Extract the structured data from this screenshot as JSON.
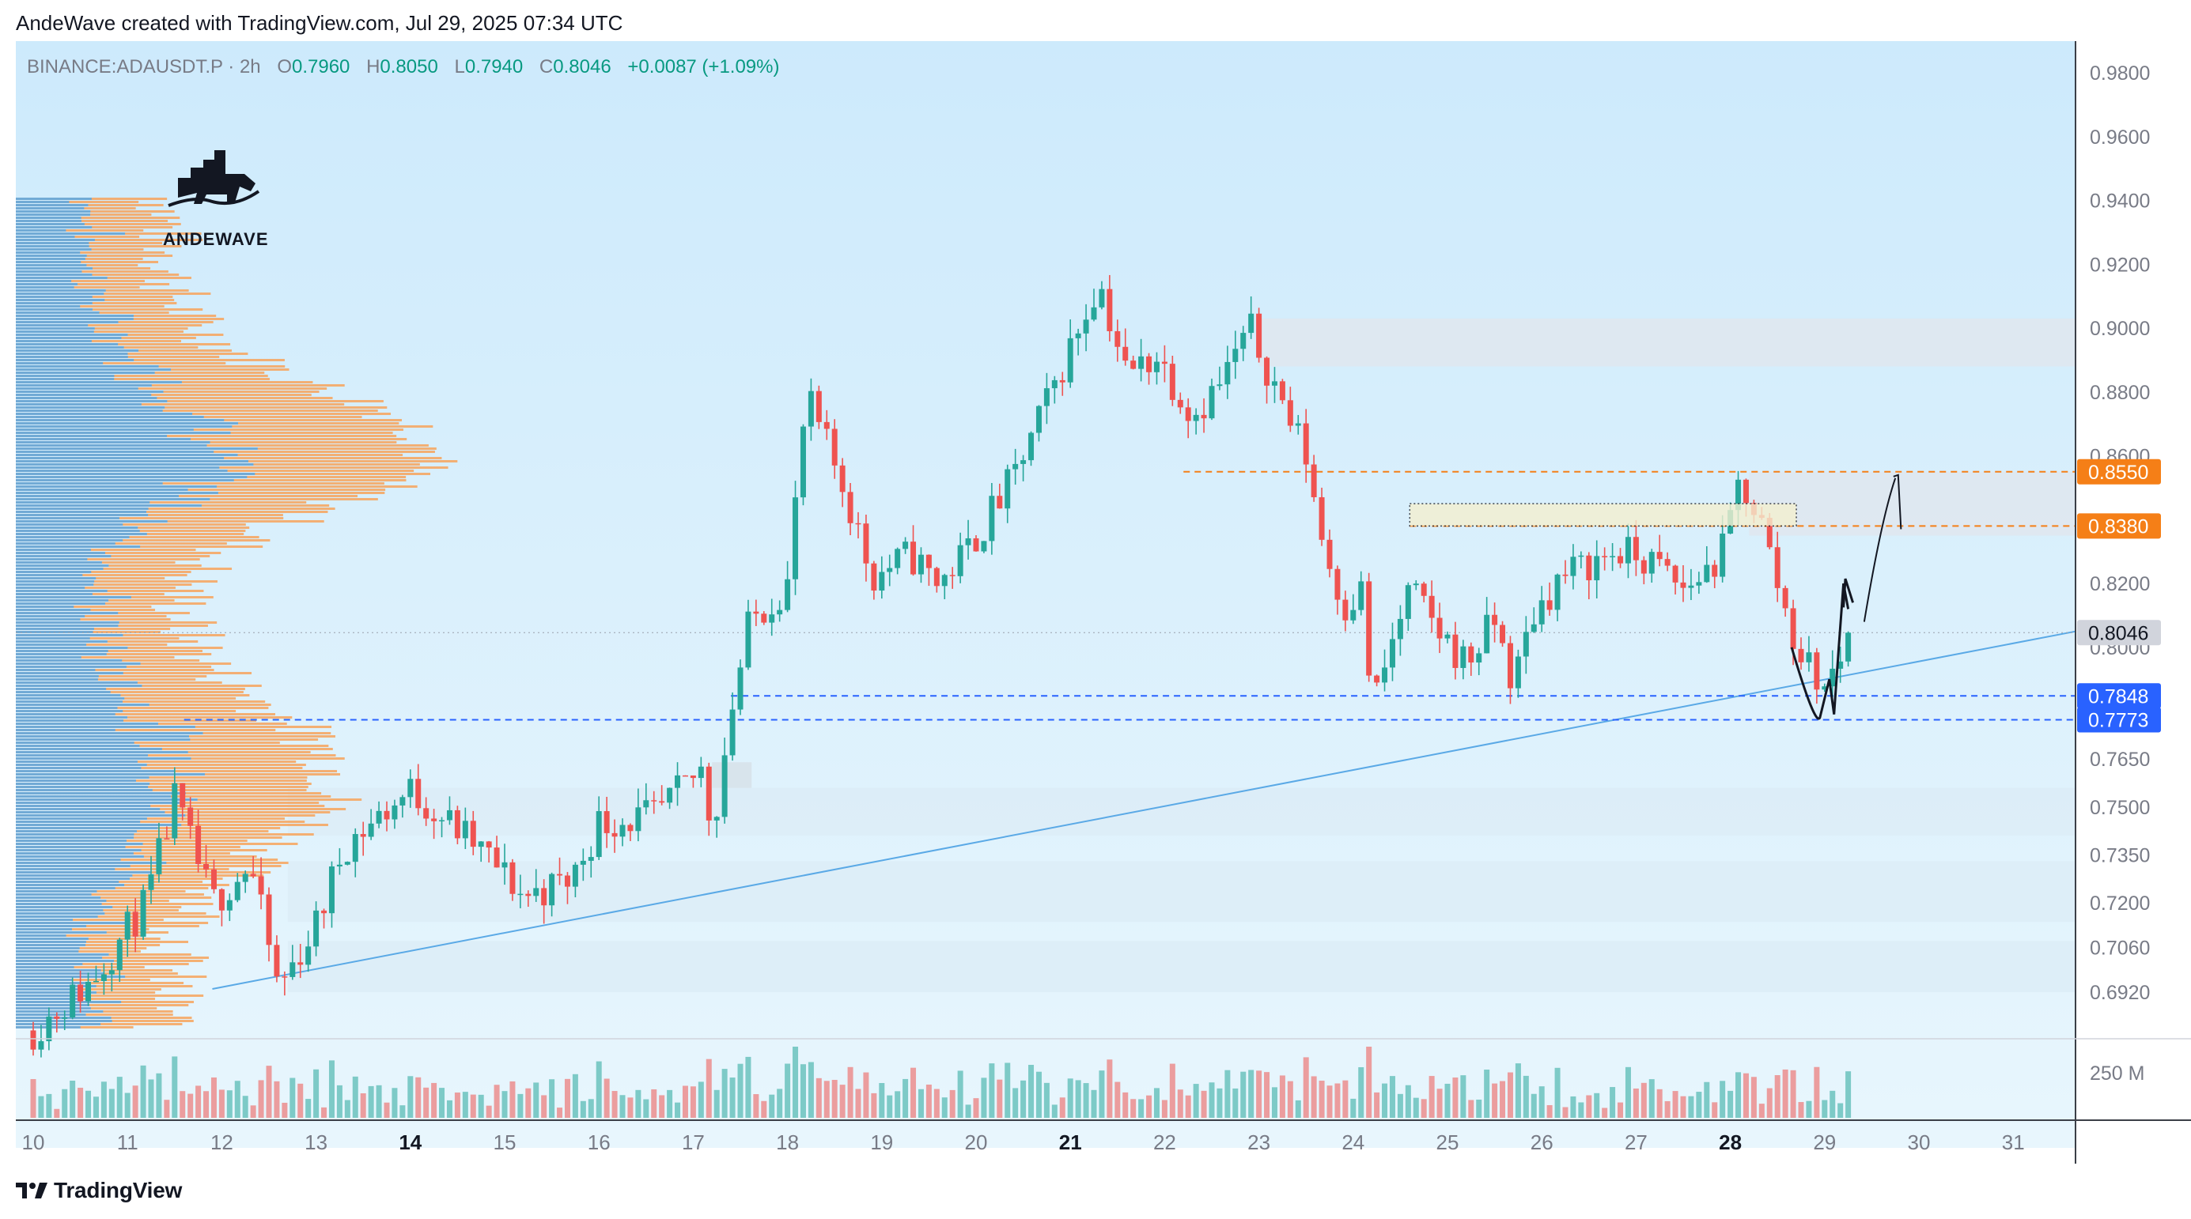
{
  "header": {
    "text": "AndeWave created with TradingView.com, Jul 29, 2025 07:34 UTC"
  },
  "legend": {
    "symbol": "BINANCE:ADAUSDT.P · 2h",
    "o_label": "O",
    "o": "0.7960",
    "h_label": "H",
    "h": "0.8050",
    "l_label": "L",
    "l": "0.7940",
    "c_label": "C",
    "c": "0.8046",
    "change": "+0.0087 (+1.09%)"
  },
  "logo": {
    "text": "ANDEWAVE"
  },
  "footer": {
    "brand": "TradingView"
  },
  "colors": {
    "up": "#26a69a",
    "down": "#ef5350",
    "bg_top": "#cdeafc",
    "bg_bottom": "#e8f6fd",
    "zone": "#dde8f3",
    "orange": "#f57f17",
    "blue": "#2962ff",
    "vp_blue": "#5aa9e6",
    "vp_orange": "#f7a35c"
  },
  "chart_data": {
    "type": "candlestick",
    "symbol": "BINANCE:ADAUSDT.P",
    "timeframe": "2h",
    "y_axis": {
      "ticks": [
        "0.9800",
        "0.9600",
        "0.9400",
        "0.9200",
        "0.9000",
        "0.8800",
        "0.8600",
        "0.8200",
        "0.8000",
        "0.7650",
        "0.7500",
        "0.7350",
        "0.7200",
        "0.7060",
        "0.6920"
      ],
      "ylim": [
        0.68,
        0.985
      ]
    },
    "x_axis": {
      "ticks": [
        {
          "label": "10",
          "bold": false
        },
        {
          "label": "11",
          "bold": false
        },
        {
          "label": "12",
          "bold": false
        },
        {
          "label": "13",
          "bold": false
        },
        {
          "label": "14",
          "bold": true
        },
        {
          "label": "15",
          "bold": false
        },
        {
          "label": "16",
          "bold": false
        },
        {
          "label": "17",
          "bold": false
        },
        {
          "label": "18",
          "bold": false
        },
        {
          "label": "19",
          "bold": false
        },
        {
          "label": "20",
          "bold": false
        },
        {
          "label": "21",
          "bold": true
        },
        {
          "label": "22",
          "bold": false
        },
        {
          "label": "23",
          "bold": false
        },
        {
          "label": "24",
          "bold": false
        },
        {
          "label": "25",
          "bold": false
        },
        {
          "label": "26",
          "bold": false
        },
        {
          "label": "27",
          "bold": false
        },
        {
          "label": "28",
          "bold": true
        },
        {
          "label": "29",
          "bold": false
        },
        {
          "label": "30",
          "bold": false
        },
        {
          "label": "31",
          "bold": false
        }
      ]
    },
    "price_labels": [
      {
        "value": "0.8550",
        "color": "#f57f17"
      },
      {
        "value": "0.8380",
        "color": "#f57f17"
      },
      {
        "value": "0.8046",
        "color": "#d1d4dc"
      },
      {
        "value": "0.7848",
        "color": "#2962ff"
      },
      {
        "value": "0.7773",
        "color": "#2962ff"
      }
    ],
    "volume_label": "250 M",
    "last_price": 0.8046,
    "horizontal_lines": [
      {
        "price": 0.855,
        "color": "#f57f17",
        "style": "dashed"
      },
      {
        "price": 0.838,
        "color": "#f57f17",
        "style": "dashed"
      },
      {
        "price": 0.7848,
        "color": "#2962ff",
        "style": "dashed"
      },
      {
        "price": 0.7773,
        "color": "#2962ff",
        "style": "dashed"
      }
    ],
    "zones": [
      {
        "from": 0.888,
        "to": 0.903
      },
      {
        "from": 0.835,
        "to": 0.855
      },
      {
        "from": 0.741,
        "to": 0.756
      },
      {
        "from": 0.714,
        "to": 0.733
      },
      {
        "from": 0.692,
        "to": 0.708
      }
    ],
    "trendline": {
      "from_day": 11.9,
      "from_price": 0.693,
      "to_day": 31.7,
      "to_price": 0.805
    },
    "key_points": [
      {
        "day": 10.0,
        "price": 0.68
      },
      {
        "day": 10.6,
        "price": 0.695
      },
      {
        "day": 11.2,
        "price": 0.72
      },
      {
        "day": 11.5,
        "price": 0.752
      },
      {
        "day": 11.9,
        "price": 0.72
      },
      {
        "day": 12.3,
        "price": 0.732
      },
      {
        "day": 12.6,
        "price": 0.693
      },
      {
        "day": 13.0,
        "price": 0.713
      },
      {
        "day": 13.3,
        "price": 0.738
      },
      {
        "day": 14.0,
        "price": 0.755
      },
      {
        "day": 14.3,
        "price": 0.748
      },
      {
        "day": 14.8,
        "price": 0.735
      },
      {
        "day": 15.2,
        "price": 0.722
      },
      {
        "day": 15.7,
        "price": 0.727
      },
      {
        "day": 16.0,
        "price": 0.745
      },
      {
        "day": 16.6,
        "price": 0.747
      },
      {
        "day": 17.1,
        "price": 0.762
      },
      {
        "day": 17.2,
        "price": 0.742
      },
      {
        "day": 17.4,
        "price": 0.78
      },
      {
        "day": 17.6,
        "price": 0.808
      },
      {
        "day": 18.0,
        "price": 0.82
      },
      {
        "day": 18.2,
        "price": 0.878
      },
      {
        "day": 18.5,
        "price": 0.857
      },
      {
        "day": 18.6,
        "price": 0.85
      },
      {
        "day": 18.9,
        "price": 0.822
      },
      {
        "day": 19.3,
        "price": 0.829
      },
      {
        "day": 19.6,
        "price": 0.82
      },
      {
        "day": 19.9,
        "price": 0.83
      },
      {
        "day": 20.4,
        "price": 0.853
      },
      {
        "day": 20.8,
        "price": 0.88
      },
      {
        "day": 21.3,
        "price": 0.915
      },
      {
        "day": 21.6,
        "price": 0.885
      },
      {
        "day": 21.9,
        "price": 0.892
      },
      {
        "day": 22.3,
        "price": 0.873
      },
      {
        "day": 22.6,
        "price": 0.883
      },
      {
        "day": 22.9,
        "price": 0.9
      },
      {
        "day": 23.2,
        "price": 0.88
      },
      {
        "day": 23.5,
        "price": 0.86
      },
      {
        "day": 23.7,
        "price": 0.83
      },
      {
        "day": 23.9,
        "price": 0.813
      },
      {
        "day": 24.1,
        "price": 0.818
      },
      {
        "day": 24.2,
        "price": 0.78
      },
      {
        "day": 24.4,
        "price": 0.8
      },
      {
        "day": 24.6,
        "price": 0.818
      },
      {
        "day": 24.9,
        "price": 0.805
      },
      {
        "day": 25.2,
        "price": 0.795
      },
      {
        "day": 25.5,
        "price": 0.808
      },
      {
        "day": 25.7,
        "price": 0.788
      },
      {
        "day": 25.9,
        "price": 0.81
      },
      {
        "day": 26.2,
        "price": 0.822
      },
      {
        "day": 26.5,
        "price": 0.826
      },
      {
        "day": 26.8,
        "price": 0.83
      },
      {
        "day": 27.2,
        "price": 0.826
      },
      {
        "day": 27.5,
        "price": 0.818
      },
      {
        "day": 27.9,
        "price": 0.828
      },
      {
        "day": 28.1,
        "price": 0.852
      },
      {
        "day": 28.3,
        "price": 0.842
      },
      {
        "day": 28.5,
        "price": 0.82
      },
      {
        "day": 28.7,
        "price": 0.8
      },
      {
        "day": 29.0,
        "price": 0.787
      },
      {
        "day": 29.3,
        "price": 0.8046
      }
    ],
    "volume_profile": true,
    "annotations": [
      "hand-drawn arrow projection toward 0.8550",
      "dotted rectangle ~0.8390-0.8450"
    ]
  }
}
